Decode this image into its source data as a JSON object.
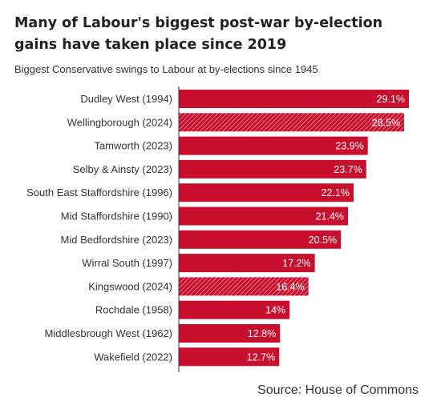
{
  "title": "Many of Labour's biggest post-war by-election gains have taken place since 2019",
  "subtitle": "Biggest Conservative swings to Labour at by-elections since 1945",
  "source": "Source: House of Commons",
  "colors": {
    "bar": "#c8102e",
    "hatch_stroke": "#f3b6c0",
    "axis": "#333333",
    "text": "#222222"
  },
  "chart_data": {
    "type": "bar",
    "orientation": "horizontal",
    "title": "Many of Labour's biggest post-war by-election gains have taken place since 2019",
    "subtitle": "Biggest Conservative swings to Labour at by-elections since 1945",
    "categories": [
      "Dudley West (1994)",
      "Wellingborough (2024)",
      "Tamworth (2023)",
      "Selby & Ainsty (2023)",
      "South East Staffordshire (1996)",
      "Mid Staffordshire (1990)",
      "Mid Bedfordshire (2023)",
      "Wirral South (1997)",
      "Kingswood (2024)",
      "Rochdale (1958)",
      "Middlesbrough West (1962)",
      "Wakefield (2022)"
    ],
    "values": [
      29.1,
      28.5,
      23.9,
      23.7,
      22.1,
      21.4,
      20.5,
      17.2,
      16.4,
      14,
      12.8,
      12.7
    ],
    "value_labels": [
      "29.1%",
      "28.5%",
      "23.9%",
      "23.7%",
      "22.1%",
      "21.4%",
      "20.5%",
      "17.2%",
      "16.4%",
      "14%",
      "12.8%",
      "12.7%"
    ],
    "hatched": [
      false,
      true,
      false,
      false,
      false,
      false,
      false,
      false,
      true,
      false,
      false,
      false
    ],
    "unit": "%",
    "xlim": [
      0,
      29.1
    ],
    "grid": false,
    "legend": "none",
    "source": "Source: House of Commons"
  }
}
